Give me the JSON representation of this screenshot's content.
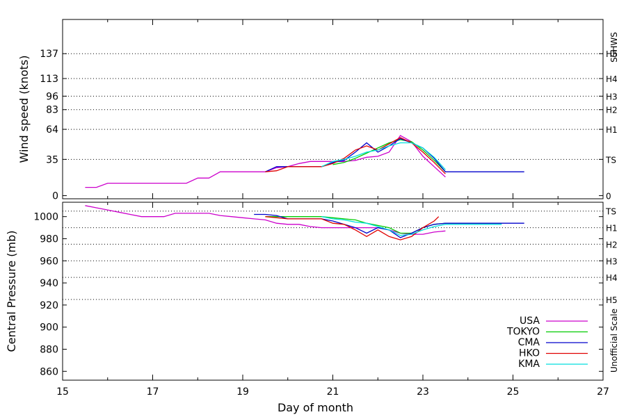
{
  "chart_data": [
    {
      "type": "line",
      "ylabel": "Wind speed (knots)",
      "right_scale_title": "SSHWS",
      "xlim": [
        15,
        27
      ],
      "ylim": [
        -3,
        170
      ],
      "x_ticks": [
        "15",
        "17",
        "19",
        "21",
        "23",
        "25",
        "27"
      ],
      "y_ticks": [
        {
          "value": 0,
          "label": "0"
        },
        {
          "value": 35,
          "label": "35"
        },
        {
          "value": 64,
          "label": "64"
        },
        {
          "value": 83,
          "label": "83"
        },
        {
          "value": 96,
          "label": "96"
        },
        {
          "value": 113,
          "label": "113"
        },
        {
          "value": 137,
          "label": "137"
        }
      ],
      "reference_lines": [
        {
          "value": 35,
          "label": "TS"
        },
        {
          "value": 64,
          "label": "H1"
        },
        {
          "value": 83,
          "label": "H2"
        },
        {
          "value": 96,
          "label": "H3"
        },
        {
          "value": 113,
          "label": "H4"
        },
        {
          "value": 137,
          "label": "H5"
        }
      ],
      "right_zero_label": "0",
      "grid": "dotted horizontal reference lines",
      "series": [
        {
          "name": "USA",
          "color": "#cc00cc",
          "points": [
            [
              15.5,
              8
            ],
            [
              15.75,
              8
            ],
            [
              16.0,
              12
            ],
            [
              17.75,
              12
            ],
            [
              18.0,
              17
            ],
            [
              18.25,
              17
            ],
            [
              18.5,
              23
            ],
            [
              19.5,
              23
            ],
            [
              19.75,
              27
            ],
            [
              20.0,
              28
            ],
            [
              20.25,
              31
            ],
            [
              20.5,
              33
            ],
            [
              20.75,
              33
            ],
            [
              21.0,
              33
            ],
            [
              21.25,
              33
            ],
            [
              21.5,
              34
            ],
            [
              21.75,
              37
            ],
            [
              22.0,
              38
            ],
            [
              22.25,
              42
            ],
            [
              22.5,
              58
            ],
            [
              22.75,
              52
            ],
            [
              23.0,
              38
            ],
            [
              23.25,
              28
            ],
            [
              23.5,
              18
            ]
          ]
        },
        {
          "name": "TOKYO",
          "color": "#00cc00",
          "points": [
            [
              21.0,
              30
            ],
            [
              21.25,
              32
            ],
            [
              21.5,
              36
            ],
            [
              21.75,
              41
            ],
            [
              22.0,
              46
            ],
            [
              22.25,
              51
            ],
            [
              22.5,
              54
            ],
            [
              22.75,
              52
            ],
            [
              23.0,
              44
            ],
            [
              23.25,
              34
            ],
            [
              23.5,
              23
            ]
          ]
        },
        {
          "name": "CMA",
          "color": "#0000cc",
          "points": [
            [
              19.5,
              23
            ],
            [
              19.75,
              28
            ],
            [
              20.0,
              28
            ],
            [
              20.25,
              28
            ],
            [
              20.5,
              28
            ],
            [
              20.75,
              28
            ],
            [
              21.0,
              32
            ],
            [
              21.25,
              34
            ],
            [
              21.5,
              42
            ],
            [
              21.75,
              51
            ],
            [
              22.0,
              42
            ],
            [
              22.25,
              48
            ],
            [
              22.5,
              55
            ],
            [
              22.75,
              51
            ],
            [
              23.0,
              46
            ],
            [
              23.25,
              36
            ],
            [
              23.5,
              23
            ],
            [
              24.0,
              23
            ],
            [
              25.0,
              23
            ],
            [
              25.25,
              23
            ]
          ]
        },
        {
          "name": "HKO",
          "color": "#e00000",
          "points": [
            [
              19.5,
              23
            ],
            [
              19.75,
              24
            ],
            [
              20.0,
              28
            ],
            [
              20.25,
              28
            ],
            [
              20.5,
              28
            ],
            [
              20.75,
              28
            ],
            [
              21.0,
              31
            ],
            [
              21.25,
              36
            ],
            [
              21.5,
              44
            ],
            [
              21.75,
              48
            ],
            [
              22.0,
              44
            ],
            [
              22.25,
              50
            ],
            [
              22.5,
              56
            ],
            [
              22.75,
              51
            ],
            [
              23.0,
              42
            ],
            [
              23.25,
              32
            ],
            [
              23.5,
              21
            ]
          ]
        },
        {
          "name": "KMA",
          "color": "#00dddd",
          "points": [
            [
              20.75,
              28
            ],
            [
              21.0,
              33
            ],
            [
              21.25,
              35
            ],
            [
              21.5,
              38
            ],
            [
              21.75,
              42
            ],
            [
              22.0,
              44
            ],
            [
              22.25,
              48
            ],
            [
              22.5,
              51
            ],
            [
              22.75,
              51
            ],
            [
              23.0,
              46
            ],
            [
              23.25,
              37
            ],
            [
              23.5,
              25
            ]
          ]
        }
      ]
    },
    {
      "type": "line",
      "ylabel": "Central Pressure (mb)",
      "xlabel": "Day of month",
      "right_scale_title": "Unofficial Scale",
      "xlim": [
        15,
        27
      ],
      "ylim": [
        852,
        1013
      ],
      "x_ticks": [
        "15",
        "17",
        "19",
        "21",
        "23",
        "25",
        "27"
      ],
      "y_ticks": [
        {
          "value": 860,
          "label": "860"
        },
        {
          "value": 880,
          "label": "880"
        },
        {
          "value": 900,
          "label": "900"
        },
        {
          "value": 920,
          "label": "920"
        },
        {
          "value": 940,
          "label": "940"
        },
        {
          "value": 960,
          "label": "960"
        },
        {
          "value": 980,
          "label": "980"
        },
        {
          "value": 1000,
          "label": "1000"
        }
      ],
      "reference_lines": [
        {
          "value": 1005,
          "label": "TS"
        },
        {
          "value": 990,
          "label": "H1"
        },
        {
          "value": 975,
          "label": "H2"
        },
        {
          "value": 960,
          "label": "H3"
        },
        {
          "value": 945,
          "label": "H4"
        },
        {
          "value": 925,
          "label": "H5"
        }
      ],
      "legend": {
        "placement": "bottom-right",
        "entries": [
          "USA",
          "TOKYO",
          "CMA",
          "HKO",
          "KMA"
        ]
      },
      "grid": "dotted horizontal reference lines",
      "series": [
        {
          "name": "USA",
          "color": "#cc00cc",
          "points": [
            [
              15.5,
              1010
            ],
            [
              15.75,
              1008
            ],
            [
              16.0,
              1006
            ],
            [
              16.25,
              1004
            ],
            [
              16.5,
              1002
            ],
            [
              16.75,
              1000
            ],
            [
              17.0,
              1000
            ],
            [
              17.25,
              1000
            ],
            [
              17.5,
              1003
            ],
            [
              18.0,
              1003
            ],
            [
              18.25,
              1003
            ],
            [
              18.5,
              1001
            ],
            [
              18.75,
              1000
            ],
            [
              19.0,
              999
            ],
            [
              19.25,
              998
            ],
            [
              19.5,
              997
            ],
            [
              19.75,
              994
            ],
            [
              20.0,
              993
            ],
            [
              20.25,
              993
            ],
            [
              20.5,
              991
            ],
            [
              20.75,
              990
            ],
            [
              21.0,
              990
            ],
            [
              21.25,
              990
            ],
            [
              21.5,
              990
            ],
            [
              21.75,
              990
            ],
            [
              22.0,
              990
            ],
            [
              22.25,
              988
            ],
            [
              22.5,
              985
            ],
            [
              22.75,
              984
            ],
            [
              23.0,
              984
            ],
            [
              23.25,
              986
            ],
            [
              23.5,
              987
            ]
          ]
        },
        {
          "name": "TOKYO",
          "color": "#00cc00",
          "points": [
            [
              19.5,
              1000
            ],
            [
              20.0,
              1000
            ],
            [
              20.5,
              1000
            ],
            [
              20.75,
              1000
            ],
            [
              21.0,
              999
            ],
            [
              21.25,
              998
            ],
            [
              21.5,
              997
            ],
            [
              21.75,
              994
            ],
            [
              22.0,
              992
            ],
            [
              22.25,
              990
            ],
            [
              22.5,
              985
            ],
            [
              22.75,
              985
            ],
            [
              23.0,
              990
            ],
            [
              23.25,
              993
            ],
            [
              23.5,
              994
            ],
            [
              24.75,
              994
            ]
          ]
        },
        {
          "name": "CMA",
          "color": "#0000cc",
          "points": [
            [
              19.25,
              1002
            ],
            [
              19.5,
              1002
            ],
            [
              19.75,
              1001
            ],
            [
              20.0,
              998
            ],
            [
              20.25,
              998
            ],
            [
              20.5,
              998
            ],
            [
              20.75,
              998
            ],
            [
              21.0,
              996
            ],
            [
              21.25,
              993
            ],
            [
              21.5,
              990
            ],
            [
              21.75,
              985
            ],
            [
              22.0,
              990
            ],
            [
              22.25,
              988
            ],
            [
              22.5,
              981
            ],
            [
              22.75,
              985
            ],
            [
              23.0,
              990
            ],
            [
              23.25,
              993
            ],
            [
              23.5,
              994
            ],
            [
              24.0,
              994
            ],
            [
              25.0,
              994
            ],
            [
              25.25,
              994
            ]
          ]
        },
        {
          "name": "HKO",
          "color": "#e00000",
          "points": [
            [
              19.5,
              1000
            ],
            [
              20.0,
              998
            ],
            [
              20.25,
              998
            ],
            [
              20.5,
              998
            ],
            [
              20.75,
              998
            ],
            [
              21.0,
              994
            ],
            [
              21.25,
              993
            ],
            [
              21.5,
              988
            ],
            [
              21.75,
              982
            ],
            [
              22.0,
              988
            ],
            [
              22.25,
              982
            ],
            [
              22.5,
              979
            ],
            [
              22.75,
              982
            ],
            [
              23.0,
              990
            ],
            [
              23.25,
              996
            ],
            [
              23.35,
              1000
            ]
          ]
        },
        {
          "name": "KMA",
          "color": "#00dddd",
          "points": [
            [
              20.75,
              1000
            ],
            [
              21.0,
              998
            ],
            [
              21.25,
              997
            ],
            [
              21.5,
              995
            ],
            [
              21.75,
              994
            ],
            [
              22.0,
              991
            ],
            [
              22.25,
              988
            ],
            [
              22.5,
              983
            ],
            [
              22.75,
              984
            ],
            [
              23.0,
              988
            ],
            [
              23.25,
              991
            ],
            [
              23.5,
              993
            ],
            [
              24.75,
              993
            ]
          ]
        }
      ]
    }
  ]
}
